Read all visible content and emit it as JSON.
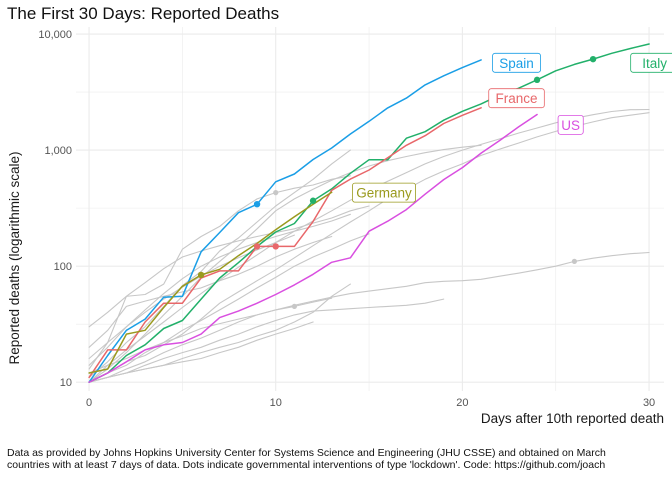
{
  "title": "The First 30 Days: Reported Deaths",
  "caption": {
    "line1": "Data as provided by Johns Hopkins University Center for Systems Science and Engineering (JHU CSSE) and obtained on March",
    "line2": "countries with at least 7 days of data. Dots indicate governmental interventions of type 'lockdown'. Code: https://github.com/joach"
  },
  "colors": {
    "Spain": "#1a9ee6",
    "Italy": "#22b06a",
    "France": "#e8676a",
    "Germany": "#9a9a1e",
    "US": "#d94fe0",
    "other": "#c7c7c7",
    "grid": "#ebebeb"
  },
  "chart_data": {
    "type": "line",
    "xlabel": "Days after 10th reported death",
    "ylabel": "Reported deaths (logarithmic scale)",
    "x_ticks": [
      0,
      10,
      20,
      30
    ],
    "y_scale": "log10",
    "y_ticks": [
      10,
      100,
      1000,
      10000
    ],
    "y_tick_labels": [
      "10",
      "100",
      "1,000",
      "10,000"
    ],
    "xlim": [
      -0.7,
      30.8
    ],
    "ylim": [
      8.4,
      11500
    ],
    "grid": true,
    "legend": "none (direct labels)",
    "series": [
      {
        "name": "Spain",
        "color_key": "Spain",
        "x": [
          0,
          1,
          2,
          3,
          4,
          5,
          6,
          7,
          8,
          9,
          10,
          11,
          12,
          13,
          14,
          15,
          16,
          17,
          18,
          19,
          20,
          21
        ],
        "y": [
          10,
          17,
          28,
          35,
          54,
          55,
          133,
          195,
          289,
          342,
          533,
          623,
          830,
          1043,
          1375,
          1772,
          2311,
          2808,
          3647,
          4365,
          5138,
          5982
        ],
        "lockdown": [
          9
        ]
      },
      {
        "name": "Italy",
        "color_key": "Italy",
        "x": [
          0,
          1,
          2,
          3,
          4,
          5,
          6,
          7,
          8,
          9,
          10,
          11,
          12,
          13,
          14,
          15,
          16,
          17,
          18,
          19,
          20,
          21,
          22,
          23,
          24,
          25,
          26,
          27,
          28,
          29,
          30
        ],
        "y": [
          10,
          12,
          17,
          21,
          29,
          34,
          52,
          79,
          107,
          148,
          197,
          233,
          366,
          463,
          631,
          827,
          827,
          1266,
          1441,
          1809,
          2158,
          2503,
          2978,
          3405,
          4032,
          4825,
          5476,
          6077,
          6820,
          7503,
          8215
        ],
        "lockdown": [
          12,
          24,
          27
        ]
      },
      {
        "name": "France",
        "color_key": "France",
        "x": [
          0,
          1,
          2,
          3,
          4,
          5,
          6,
          7,
          8,
          9,
          10,
          11,
          12,
          13,
          14,
          15,
          16,
          17,
          18,
          19,
          20,
          21
        ],
        "y": [
          11,
          19,
          19,
          33,
          48,
          48,
          79,
          91,
          91,
          148,
          148,
          148,
          243,
          450,
          562,
          674,
          860,
          1100,
          1331,
          1696,
          1995,
          2314
        ],
        "lockdown": [
          9,
          10
        ]
      },
      {
        "name": "Germany",
        "color_key": "Germany",
        "x": [
          0,
          1,
          2,
          3,
          4,
          5,
          6,
          7,
          8,
          9,
          10,
          11,
          12,
          13
        ],
        "y": [
          12,
          13,
          26,
          28,
          44,
          67,
          84,
          94,
          123,
          157,
          206,
          267,
          342,
          433
        ],
        "lockdown": [
          6
        ]
      },
      {
        "name": "US",
        "color_key": "US",
        "x": [
          0,
          1,
          2,
          3,
          4,
          5,
          6,
          7,
          8,
          9,
          10,
          11,
          12,
          13,
          14,
          15,
          16,
          17,
          18,
          19,
          20,
          21,
          22,
          23,
          24
        ],
        "y": [
          10,
          12,
          15,
          19,
          21,
          22,
          26,
          36,
          41,
          48,
          57,
          69,
          85,
          108,
          118,
          200,
          244,
          307,
          417,
          557,
          706,
          942,
          1209,
          1581,
          2026
        ],
        "lockdown": []
      },
      {
        "name": "",
        "color_key": "other",
        "x": [
          0,
          1,
          2,
          3,
          4,
          5,
          6,
          7,
          8,
          9,
          10,
          11,
          12,
          13,
          14,
          15,
          16,
          17,
          18,
          19,
          20,
          21,
          22,
          23,
          24,
          25,
          26,
          27,
          28,
          29,
          30
        ],
        "y": [
          10,
          12,
          15,
          17,
          21,
          26,
          35,
          48,
          60,
          75,
          93,
          118,
          150,
          190,
          240,
          300,
          380,
          460,
          560,
          660,
          760,
          900,
          1020,
          1150,
          1300,
          1450,
          1600,
          1750,
          1900,
          2000,
          2100
        ],
        "lockdown": []
      },
      {
        "name": "",
        "color_key": "other",
        "x": [
          0,
          1,
          2,
          3,
          4,
          5,
          6,
          7,
          8,
          9,
          10,
          11,
          12,
          13,
          14,
          15,
          16,
          17,
          18,
          19,
          20,
          21,
          22,
          23,
          24,
          25,
          26,
          27,
          28,
          29,
          30
        ],
        "y": [
          10,
          14,
          19,
          25,
          33,
          44,
          58,
          76,
          98,
          125,
          160,
          200,
          245,
          300,
          370,
          450,
          540,
          640,
          760,
          880,
          1000,
          1120,
          1250,
          1400,
          1550,
          1720,
          1880,
          2020,
          2150,
          2230,
          2240
        ],
        "lockdown": []
      },
      {
        "name": "",
        "color_key": "other",
        "x": [
          0,
          1,
          2,
          3,
          4,
          5,
          6,
          7,
          8,
          9,
          10,
          11,
          12,
          13,
          14,
          15,
          16,
          17,
          18,
          19,
          20,
          21,
          22,
          23,
          24,
          25,
          26,
          27,
          28,
          29,
          30
        ],
        "y": [
          10,
          11,
          13,
          15,
          18,
          21,
          24,
          28,
          33,
          38,
          42,
          46,
          50,
          54,
          58,
          61,
          64,
          67,
          72,
          74,
          75,
          77,
          82,
          87,
          93,
          100,
          110,
          117,
          123,
          128,
          131
        ],
        "lockdown": [
          26
        ]
      },
      {
        "name": "",
        "color_key": "other",
        "x": [
          0,
          1,
          2,
          3,
          4,
          5,
          6,
          7,
          8,
          9,
          10,
          11,
          12,
          13,
          14,
          15,
          16,
          17,
          18,
          19,
          20,
          21
        ],
        "y": [
          10,
          13,
          18,
          26,
          38,
          55,
          80,
          110,
          150,
          210,
          300,
          380,
          460,
          550,
          640,
          730,
          810,
          880,
          950,
          1010,
          1060,
          1100
        ],
        "lockdown": []
      },
      {
        "name": "",
        "color_key": "other",
        "x": [
          0,
          1,
          2,
          3,
          4,
          5,
          6,
          7,
          8,
          9,
          10,
          11,
          12,
          13,
          14
        ],
        "y": [
          11,
          15,
          22,
          30,
          45,
          68,
          90,
          135,
          175,
          240,
          330,
          430,
          560,
          760,
          1000
        ],
        "lockdown": []
      },
      {
        "name": "",
        "color_key": "other",
        "x": [
          0,
          1,
          2,
          3,
          4,
          5,
          6,
          7,
          8,
          9,
          10,
          11,
          12,
          13,
          14
        ],
        "y": [
          13,
          22,
          55,
          57,
          70,
          140,
          180,
          220,
          300,
          380,
          430,
          470,
          500,
          560,
          600
        ],
        "lockdown": [
          10
        ]
      },
      {
        "name": "",
        "color_key": "other",
        "x": [
          0,
          1,
          2,
          3,
          4,
          5,
          6,
          7,
          8,
          9,
          10,
          11,
          12,
          13,
          14,
          15,
          16,
          17,
          18,
          19
        ],
        "y": [
          10,
          11,
          12,
          14,
          16,
          18,
          20,
          23,
          26,
          30,
          34,
          38,
          41,
          42,
          43,
          44,
          45,
          46,
          48,
          52
        ],
        "lockdown": []
      },
      {
        "name": "",
        "color_key": "other",
        "x": [
          0,
          1,
          2,
          3,
          4,
          5,
          6,
          7,
          8,
          9,
          10,
          11,
          12,
          13,
          14,
          15
        ],
        "y": [
          10,
          12,
          14,
          18,
          22,
          28,
          34,
          42,
          52,
          65,
          80,
          100,
          120,
          140,
          165,
          190
        ],
        "lockdown": []
      },
      {
        "name": "",
        "color_key": "other",
        "x": [
          0,
          1,
          2,
          3,
          4,
          5,
          6,
          7,
          8,
          9,
          10,
          11,
          12,
          13,
          14
        ],
        "y": [
          10,
          11,
          12,
          13,
          14,
          16,
          18,
          20,
          22,
          25,
          28,
          33,
          40,
          55,
          70
        ],
        "lockdown": []
      },
      {
        "name": "",
        "color_key": "other",
        "x": [
          0,
          1,
          2,
          3,
          4,
          5,
          6,
          7,
          8,
          9,
          10,
          11,
          12,
          13
        ],
        "y": [
          12,
          14,
          16,
          19,
          22,
          25,
          29,
          32,
          35,
          38,
          42,
          45,
          49,
          53
        ],
        "lockdown": [
          11
        ]
      },
      {
        "name": "",
        "color_key": "other",
        "x": [
          0,
          1,
          2,
          3,
          4,
          5,
          6,
          7,
          8,
          9,
          10,
          11,
          12,
          13,
          14,
          15
        ],
        "y": [
          30,
          40,
          55,
          72,
          95,
          120,
          135,
          150,
          165,
          180,
          195,
          210,
          235,
          260,
          300,
          330
        ],
        "lockdown": []
      },
      {
        "name": "",
        "color_key": "other",
        "x": [
          0,
          1,
          2,
          3,
          4,
          5,
          6,
          7,
          8,
          9,
          10,
          11,
          12
        ],
        "y": [
          10,
          11,
          12,
          13,
          14,
          15,
          16,
          18,
          20,
          23,
          26,
          29,
          33
        ],
        "lockdown": []
      },
      {
        "name": "",
        "color_key": "other",
        "x": [
          0,
          1,
          2,
          3,
          4,
          5,
          6,
          7,
          8,
          9,
          10,
          11,
          12,
          13,
          14
        ],
        "y": [
          14,
          20,
          30,
          42,
          58,
          78,
          100,
          120,
          140,
          160,
          180,
          200,
          220,
          245,
          280
        ],
        "lockdown": []
      },
      {
        "name": "",
        "color_key": "other",
        "x": [
          0,
          1,
          2,
          3,
          4,
          5,
          6,
          7,
          8,
          9,
          10,
          11
        ],
        "y": [
          16,
          22,
          30,
          40,
          52,
          66,
          82,
          100,
          118,
          138,
          160,
          185
        ],
        "lockdown": []
      },
      {
        "name": "",
        "color_key": "other",
        "x": [
          0,
          1,
          2,
          3,
          4,
          5,
          6,
          7,
          8,
          9,
          10,
          11,
          12,
          13
        ],
        "y": [
          20,
          28,
          45,
          50,
          55,
          60,
          65,
          75,
          85,
          100,
          120,
          140,
          160,
          180
        ],
        "lockdown": []
      }
    ],
    "annotations": [
      {
        "text": "Spain",
        "color_key": "Spain",
        "x": 22.9,
        "y": 5650
      },
      {
        "text": "Italy",
        "color_key": "Italy",
        "x": 30.3,
        "y": 5650
      },
      {
        "text": "France",
        "color_key": "France",
        "x": 22.9,
        "y": 2800
      },
      {
        "text": "Germany",
        "color_key": "Germany",
        "x": 15.8,
        "y": 430
      },
      {
        "text": "US",
        "color_key": "US",
        "x": 25.8,
        "y": 1650
      }
    ]
  }
}
